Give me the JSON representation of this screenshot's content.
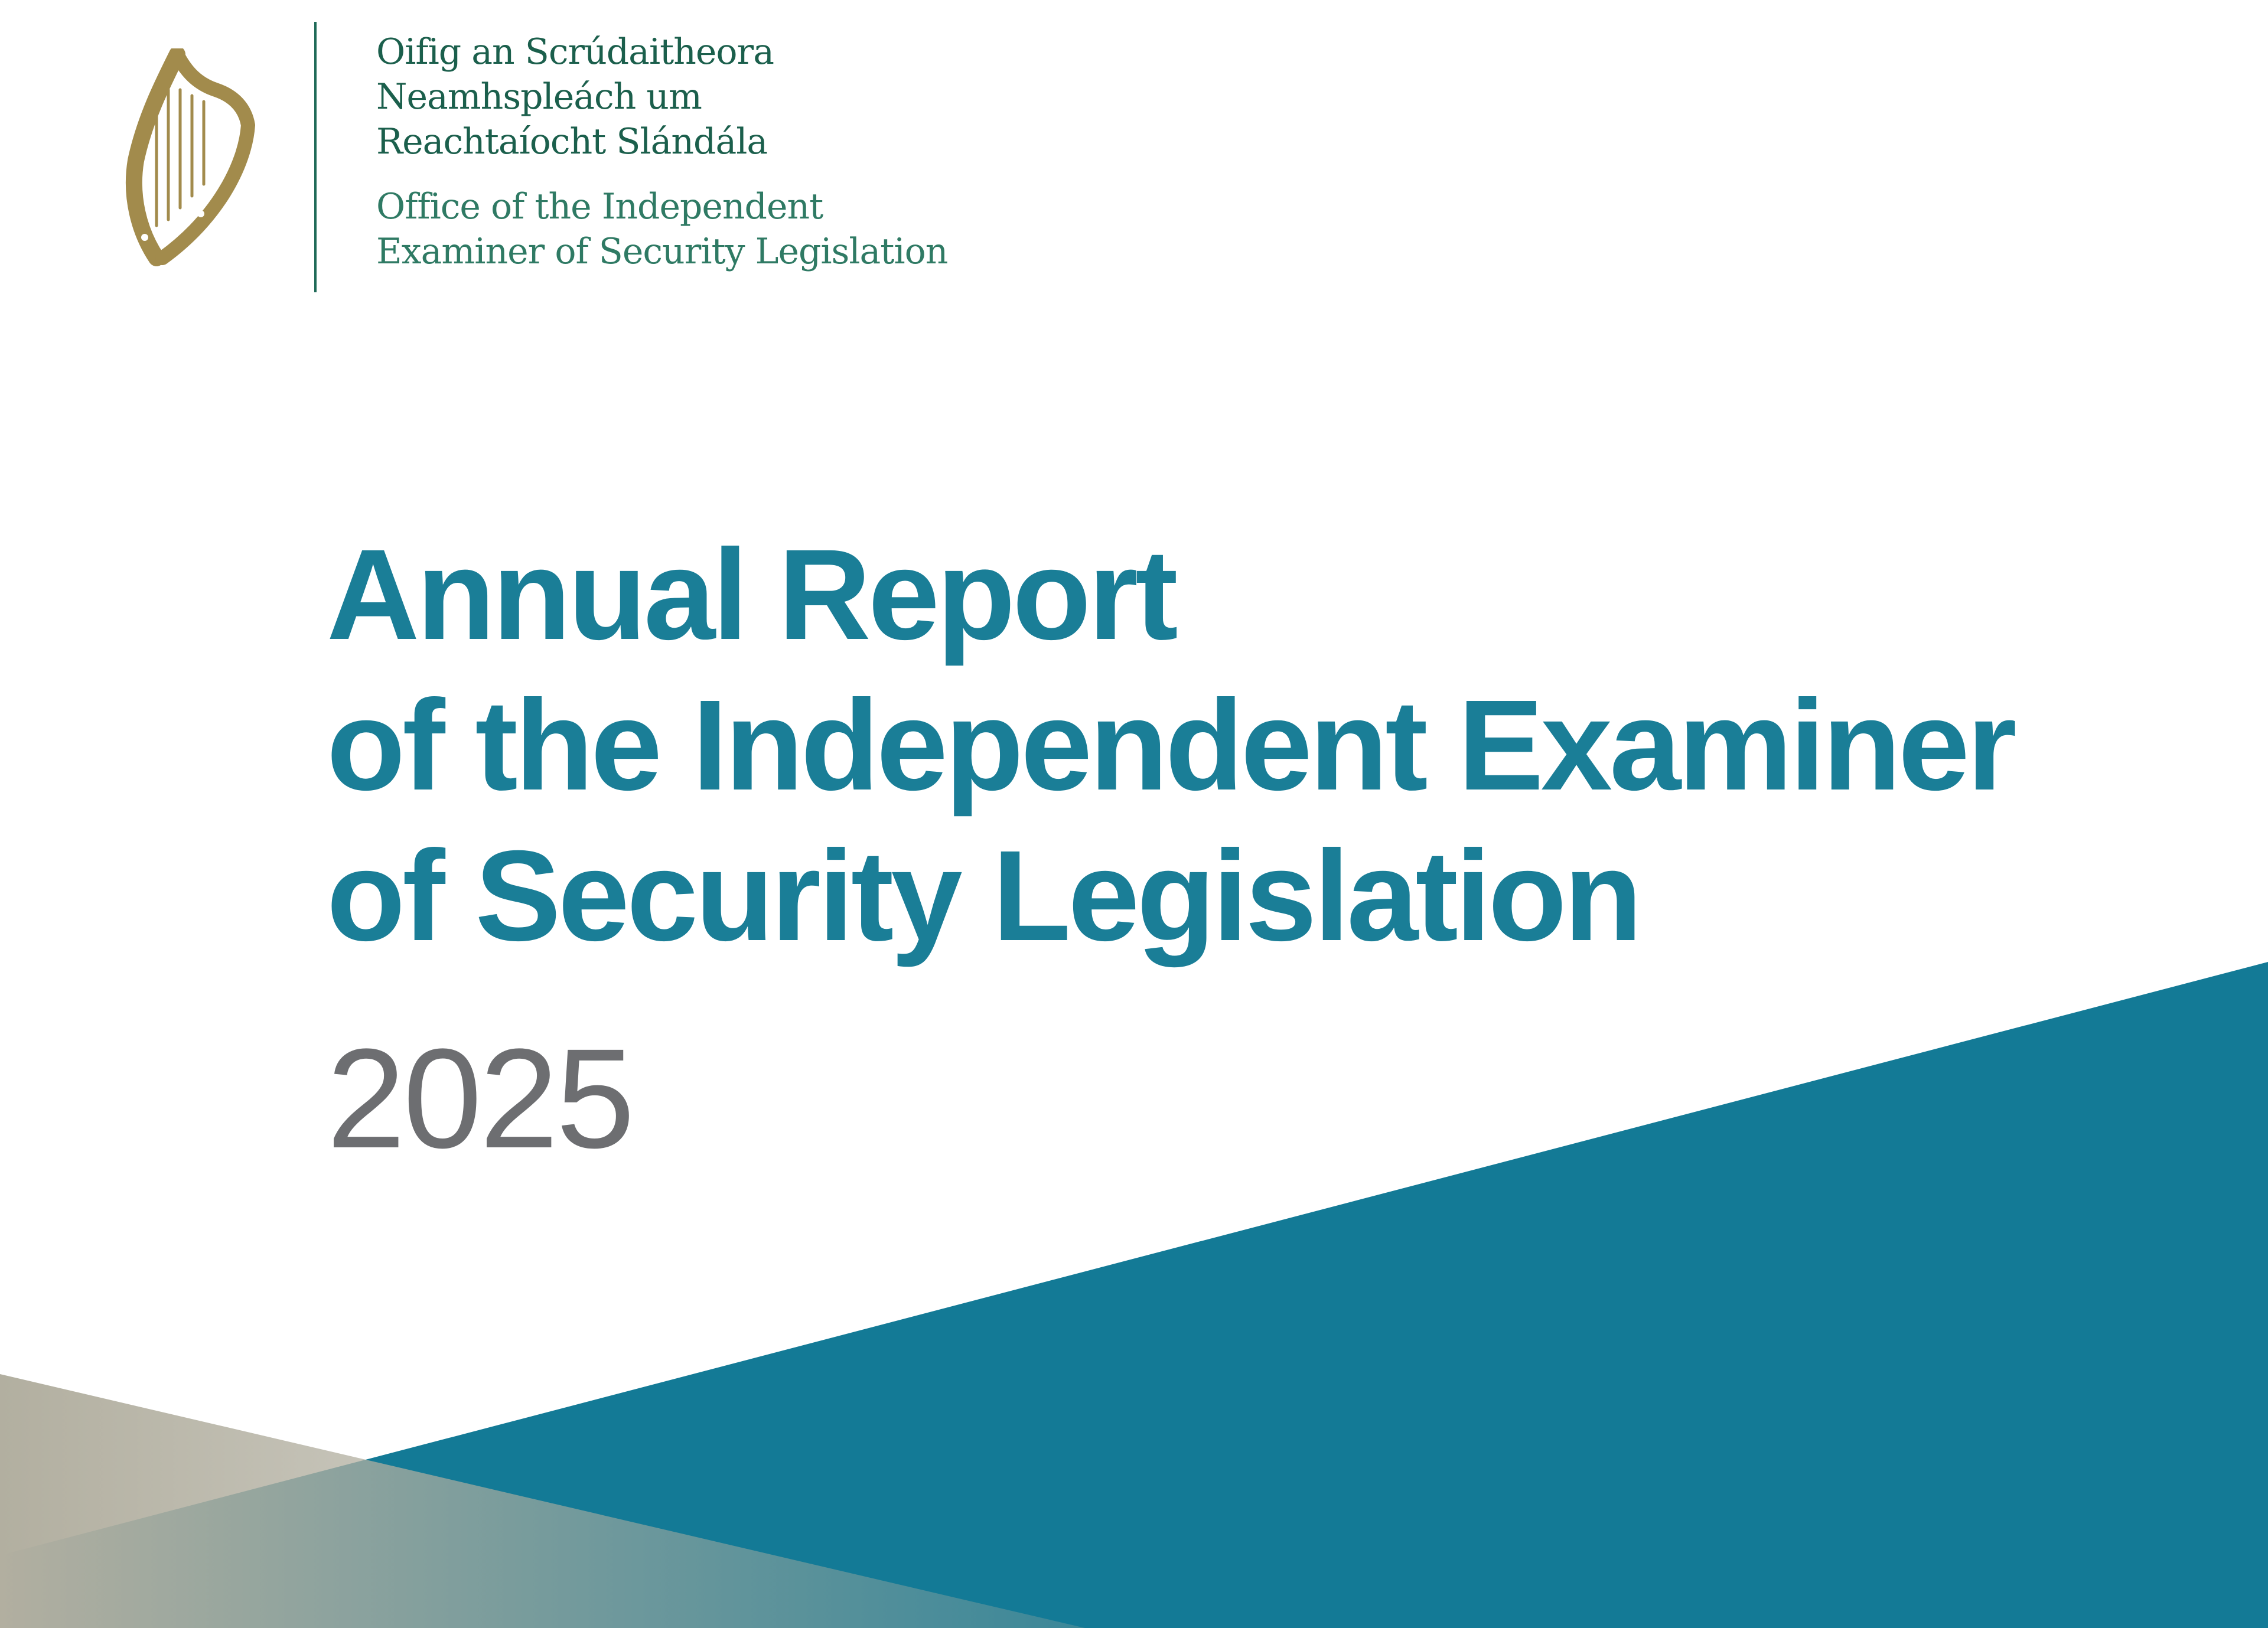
{
  "colors": {
    "teal": "#137a96",
    "title": "#1a7e97",
    "year": "#6d6e71",
    "org_text": "#1b5f4c",
    "harp_gold": "#a28b4c",
    "tan": "#b2afa0"
  },
  "logo": {
    "icon": "harp-icon",
    "irish_lines": [
      "Oifig an Scrúdaitheora",
      "Neamhspleách um",
      "Reachtaíocht Slándála"
    ],
    "english_lines": [
      "Office of the Independent",
      "Examiner of Security Legislation"
    ]
  },
  "title": {
    "lines": [
      "Annual Report",
      "of the Independent Examiner",
      "of Security Legislation"
    ],
    "year": "2025"
  }
}
